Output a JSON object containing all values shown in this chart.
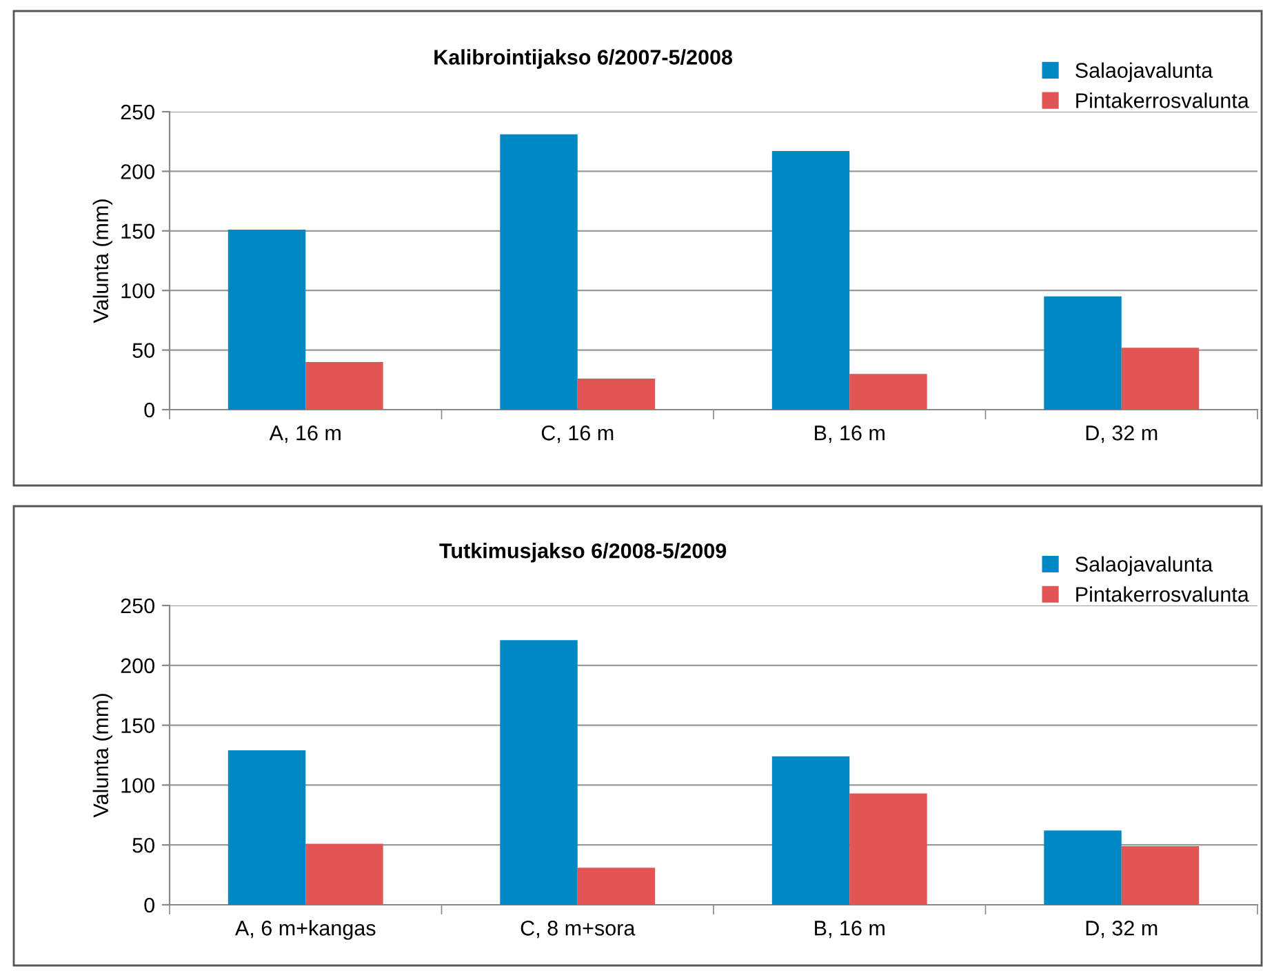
{
  "chart_data": [
    {
      "type": "bar",
      "title": "Kalibrointijakso 6/2007-5/2008",
      "ylabel": "Valunta (mm)",
      "categories": [
        "A, 16 m",
        "C, 16 m",
        "B, 16 m",
        "D, 32 m"
      ],
      "series": [
        {
          "name": "Salaojavalunta",
          "color": "#0088c5",
          "values": [
            151,
            231,
            217,
            95
          ]
        },
        {
          "name": "Pintakerrosvalunta",
          "color": "#e15654",
          "values": [
            40,
            26,
            30,
            52
          ]
        }
      ],
      "ylim": [
        0,
        250
      ],
      "yticks": [
        0,
        50,
        100,
        150,
        200,
        250
      ],
      "grid": "y",
      "legend": "top right"
    },
    {
      "type": "bar",
      "title": "Tutkimusjakso 6/2008-5/2009",
      "ylabel": "Valunta (mm)",
      "categories": [
        "A, 6 m+kangas",
        "C, 8 m+sora",
        "B, 16 m",
        "D, 32 m"
      ],
      "series": [
        {
          "name": "Salaojavalunta",
          "color": "#0088c5",
          "values": [
            129,
            221,
            124,
            62
          ]
        },
        {
          "name": "Pintakerrosvalunta",
          "color": "#e15654",
          "values": [
            51,
            31,
            93,
            49
          ]
        }
      ],
      "ylim": [
        0,
        250
      ],
      "yticks": [
        0,
        50,
        100,
        150,
        200,
        250
      ],
      "grid": "y",
      "legend": "top right"
    }
  ]
}
